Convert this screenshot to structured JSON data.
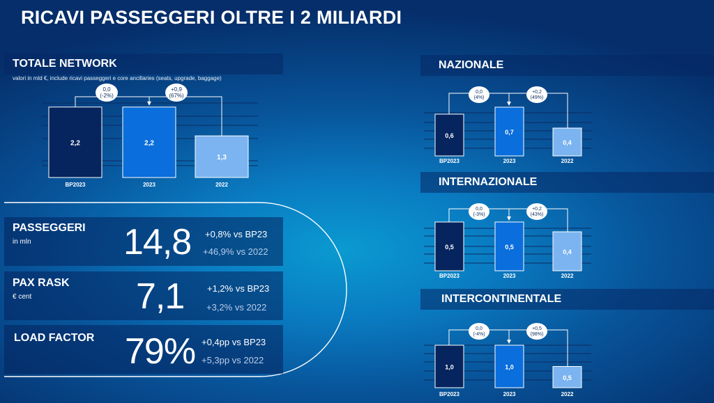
{
  "title": "RICAVI PASSEGGERI OLTRE I 2 MILIARDI",
  "colors": {
    "bp2023": "#06245e",
    "y2023": "#0a6edc",
    "y2022": "#7bb4f0",
    "band": "#062864"
  },
  "totale": {
    "heading": "TOTALE NETWORK",
    "note": "valori in mld €, include ricavi passeggeri e core ancillaries (seats, upgrade, baggage)"
  },
  "sections": {
    "nazionale": "NAZIONALE",
    "internazionale": "INTERNAZIONALE",
    "intercontinentale": "INTERCONTINENTALE"
  },
  "chart_data": [
    {
      "id": "totale",
      "type": "bar",
      "categories": [
        "BP2023",
        "2023",
        "2022"
      ],
      "values": [
        2.2,
        2.2,
        1.3
      ],
      "labels": [
        "2,2",
        "2,2",
        "1,3"
      ],
      "delta_left": [
        "0,0",
        "(-2%)"
      ],
      "delta_right": [
        "+0,9",
        "(67%)"
      ]
    },
    {
      "id": "nazionale",
      "type": "bar",
      "categories": [
        "BP2023",
        "2023",
        "2022"
      ],
      "values": [
        0.6,
        0.7,
        0.4
      ],
      "labels": [
        "0,6",
        "0,7",
        "0,4"
      ],
      "delta_left": [
        "0,0",
        "(4%)"
      ],
      "delta_right": [
        "+0,2",
        "(49%)"
      ]
    },
    {
      "id": "internazionale",
      "type": "bar",
      "categories": [
        "BP2023",
        "2023",
        "2022"
      ],
      "values": [
        0.5,
        0.5,
        0.4
      ],
      "labels": [
        "0,5",
        "0,5",
        "0,4"
      ],
      "delta_left": [
        "0,0",
        "(-3%)"
      ],
      "delta_right": [
        "+0,2",
        "(43%)"
      ]
    },
    {
      "id": "intercontinentale",
      "type": "bar",
      "categories": [
        "BP2023",
        "2023",
        "2022"
      ],
      "values": [
        1.0,
        1.0,
        0.5
      ],
      "labels": [
        "1,0",
        "1,0",
        "0,5"
      ],
      "delta_left": [
        "0,0",
        "(-4%)"
      ],
      "delta_right": [
        "+0,5",
        "(98%)"
      ]
    }
  ],
  "kpis": {
    "passeggeri": {
      "title": "PASSEGGERI",
      "subtitle": "in mln",
      "value": "14,8",
      "delta1": "+0,8% vs BP23",
      "delta2": "+46,9% vs 2022"
    },
    "paxrask": {
      "title": "PAX RASK",
      "subtitle": "€ cent",
      "value": "7,1",
      "delta1": "+1,2% vs BP23",
      "delta2": "+3,2% vs 2022"
    },
    "loadfactor": {
      "title": "LOAD FACTOR",
      "value": "79%",
      "delta1": "+0,4pp vs BP23",
      "delta2": "+5,3pp vs 2022"
    }
  }
}
